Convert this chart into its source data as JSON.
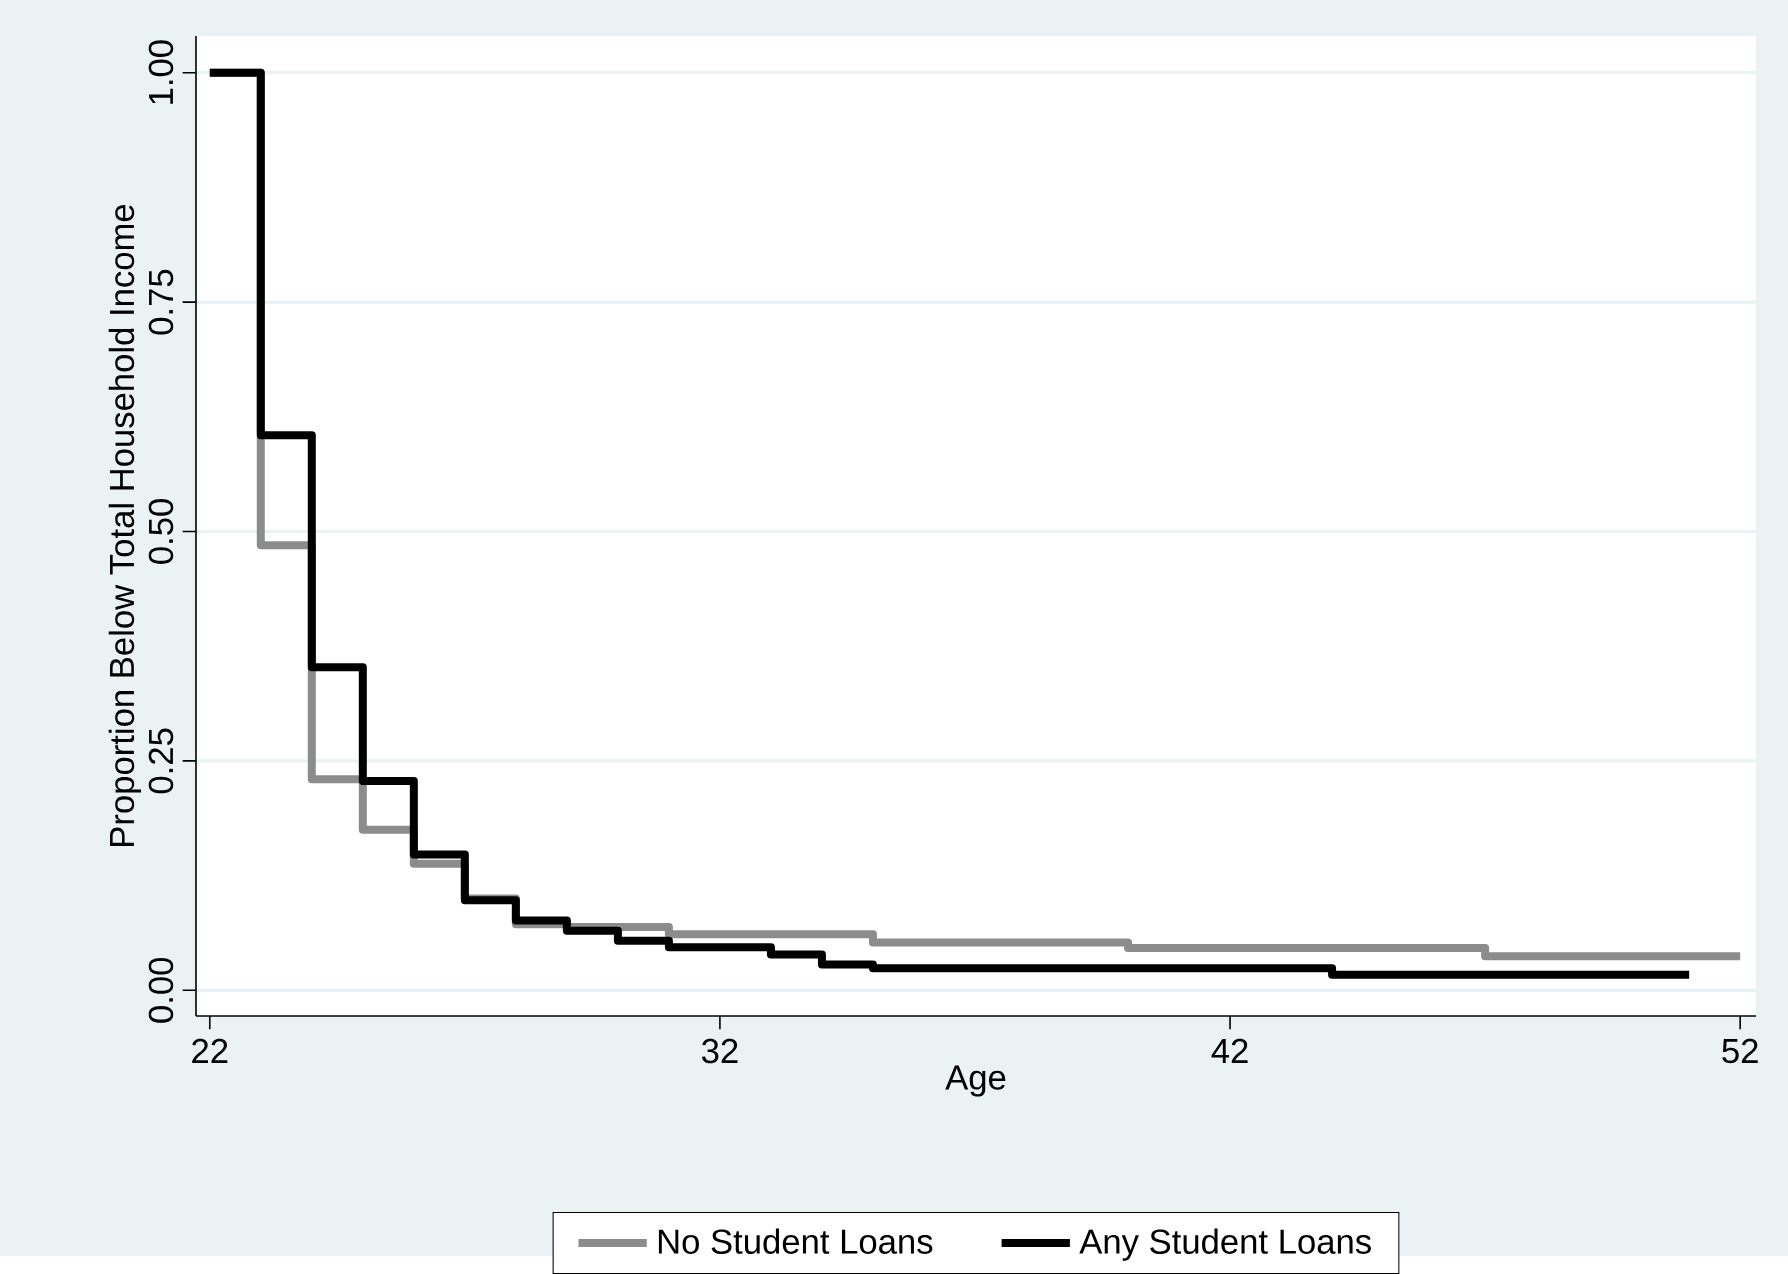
{
  "chart_data": {
    "type": "step",
    "xlabel": "Age",
    "ylabel": "Proportion Below Total Household Income",
    "xlim": [
      21.73,
      52.31
    ],
    "ylim": [
      -0.028,
      1.04
    ],
    "xticks": [
      22,
      32,
      42,
      52
    ],
    "yticks": [
      {
        "value": 0,
        "label": "0.00"
      },
      {
        "value": 0.25,
        "label": "0.25"
      },
      {
        "value": 0.5,
        "label": "0.50"
      },
      {
        "value": 0.75,
        "label": "0.75"
      },
      {
        "value": 1,
        "label": "1.00"
      }
    ],
    "grid": "y",
    "legend": "bottom",
    "series": [
      {
        "name": "No Student Loans",
        "color": "#8c8c8c",
        "x": [
          22,
          23,
          24,
          25,
          26,
          27,
          28,
          29,
          31,
          35,
          40,
          47,
          52
        ],
        "values": [
          1,
          0.485,
          0.23,
          0.175,
          0.138,
          0.1,
          0.072,
          0.069,
          0.061,
          0.052,
          0.046,
          0.037,
          0.037
        ]
      },
      {
        "name": "Any Student Loans",
        "color": "#000000",
        "x": [
          22,
          23,
          24,
          25,
          26,
          27,
          28,
          29,
          30,
          31,
          33,
          34,
          35,
          44,
          51
        ],
        "values": [
          1,
          0.605,
          0.352,
          0.228,
          0.148,
          0.098,
          0.076,
          0.065,
          0.054,
          0.047,
          0.039,
          0.028,
          0.024,
          0.017,
          0.017
        ]
      }
    ]
  }
}
